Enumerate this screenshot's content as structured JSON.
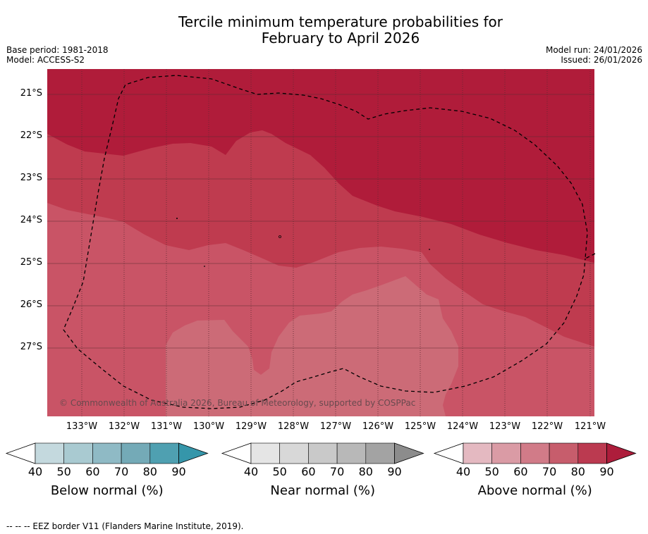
{
  "title": {
    "line1": "Tercile minimum temperature probabilities for",
    "line2": "February to April 2026"
  },
  "meta": {
    "base_period": "Base period: 1981-2018",
    "model": "Model: ACCESS-S2",
    "model_run": "Model run: 24/01/2026",
    "issued": "Issued: 26/01/2026"
  },
  "map": {
    "copyright": "© Commonwealth of Australia 2026, Bureau of Meteorology, supported by COSPPac",
    "lat_labels": [
      "21°S",
      "22°S",
      "23°S",
      "24°S",
      "25°S",
      "26°S",
      "27°S"
    ],
    "lon_labels": [
      "133°W",
      "132°W",
      "131°W",
      "130°W",
      "129°W",
      "128°W",
      "127°W",
      "126°W",
      "125°W",
      "124°W",
      "123°W",
      "122°W",
      "121°W"
    ],
    "colors": {
      "above_90": "#b01c3a",
      "above_80": "#bf3b4f",
      "above_70": "#c95466",
      "above_60": "#cc6b77",
      "grid": "#5a2a30",
      "eez": "#000000"
    }
  },
  "colorbars": [
    {
      "title": "Below normal (%)",
      "ticks": [
        "40",
        "50",
        "60",
        "70",
        "80",
        "90"
      ],
      "colors": [
        "#c4d9de",
        "#a9cad1",
        "#8fbac5",
        "#74aab7",
        "#4fa0b1",
        "#3596aa"
      ]
    },
    {
      "title": "Near normal (%)",
      "ticks": [
        "40",
        "50",
        "60",
        "70",
        "80",
        "90"
      ],
      "colors": [
        "#e5e5e5",
        "#d8d8d8",
        "#c9c9c9",
        "#b8b8b8",
        "#a3a3a3",
        "#8c8c8c"
      ]
    },
    {
      "title": "Above normal (%)",
      "ticks": [
        "40",
        "50",
        "60",
        "70",
        "80",
        "90"
      ],
      "colors": [
        "#e4b9c1",
        "#da9ba5",
        "#d17b88",
        "#c75d6c",
        "#bb3a50",
        "#ad1d3b"
      ]
    }
  ],
  "footer": "--  --  -- EEZ border V11 (Flanders Marine Institute, 2019)."
}
